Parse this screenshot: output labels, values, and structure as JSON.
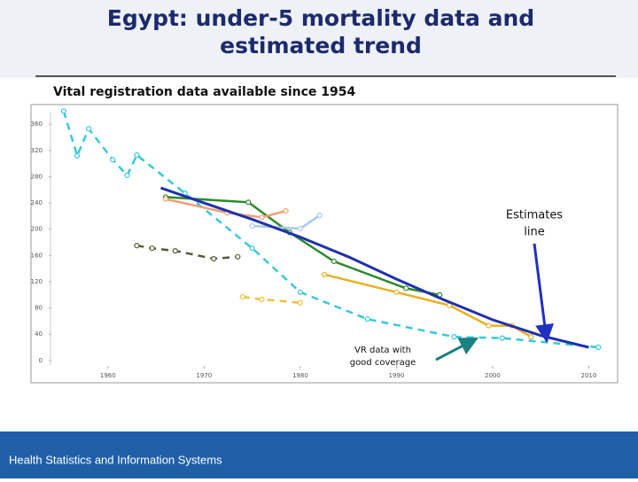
{
  "chart_data": {
    "type": "line",
    "title": "Egypt: under-5 mortality data and estimated trend",
    "subtitle": "Vital registration data available since 1954",
    "footer": "Health Statistics and Information Systems",
    "annotations": [
      "Estimates line",
      "VR data with good coverage"
    ],
    "xlim": [
      1952,
      2013
    ],
    "xticks": [
      1960,
      1970,
      1980,
      1990,
      2000,
      2010
    ],
    "ylim": [
      -34,
      390
    ],
    "yticks": [
      0,
      40,
      80,
      120,
      160,
      200,
      240,
      280,
      320,
      360
    ],
    "series": [
      {
        "color": "#37c8e0",
        "dashed": true,
        "x": [
          1955.4,
          1956.8,
          1958,
          1960.5,
          1962,
          1963,
          1968,
          1975,
          1980,
          1987,
          1996,
          2001,
          2011
        ],
        "values": [
          380,
          312,
          353,
          306,
          282,
          313,
          255,
          171,
          104,
          63,
          36,
          34,
          20
        ]
      },
      {
        "color": "#5a5a3a",
        "dashed": true,
        "x": [
          1963,
          1964.6,
          1967,
          1971,
          1973.5
        ],
        "values": [
          175,
          171,
          167,
          155,
          158
        ]
      },
      {
        "color": "#f0c040",
        "dashed": true,
        "x": [
          1974,
          1976,
          1980
        ],
        "values": [
          97,
          93,
          88
        ]
      },
      {
        "color": "#2a8a2a",
        "dashed": false,
        "x": [
          1966,
          1974.6,
          1978.9,
          1983.5,
          1991,
          1994.5
        ],
        "values": [
          249,
          241,
          195,
          151,
          110,
          100
        ]
      },
      {
        "color": "#f0a070",
        "dashed": false,
        "x": [
          1966,
          1972.4,
          1976,
          1978.5
        ],
        "values": [
          246,
          225,
          218,
          228
        ]
      },
      {
        "color": "#a8c8e8",
        "dashed": false,
        "x": [
          1975,
          1980,
          1982
        ],
        "values": [
          205,
          201,
          221
        ]
      },
      {
        "color": "#e8b020",
        "dashed": false,
        "x": [
          1982.5,
          1990,
          1995.5,
          1999.6,
          2002,
          2004
        ],
        "values": [
          131,
          104,
          84,
          53,
          53,
          36
        ]
      },
      {
        "color": "#2030b0",
        "dashed": false,
        "x": [
          1965.5,
          1970,
          1975,
          1980,
          1985,
          1990,
          1995,
          2000,
          2005,
          2010
        ],
        "values": [
          263,
          240,
          215,
          188,
          158,
          124,
          92,
          62,
          38,
          20
        ]
      }
    ]
  }
}
